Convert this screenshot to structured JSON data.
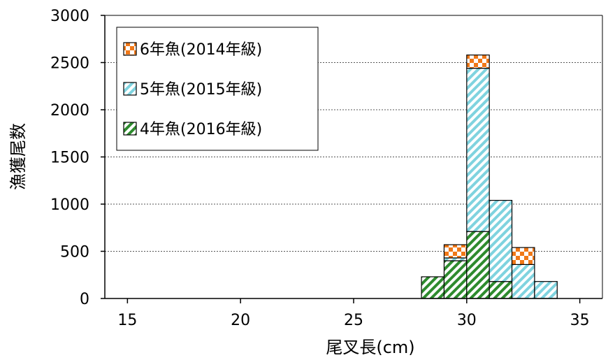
{
  "chart_data": {
    "type": "bar",
    "stacked": true,
    "xlabel": "尾叉長(cm)",
    "ylabel": "漁獲尾数",
    "xlim": [
      14,
      36
    ],
    "ylim": [
      0,
      3000
    ],
    "xticks": [
      "15",
      "20",
      "25",
      "30",
      "35"
    ],
    "xtick_values": [
      15,
      20,
      25,
      30,
      35
    ],
    "yticks": [
      "0",
      "500",
      "1000",
      "1500",
      "2000",
      "2500",
      "3000"
    ],
    "ytick_values": [
      0,
      500,
      1000,
      1500,
      2000,
      2500,
      3000
    ],
    "grid": "horizontal-dotted",
    "legend_position": "top-left",
    "bin_width": 1,
    "bins": [
      28,
      29,
      30,
      31,
      32,
      33
    ],
    "series": [
      {
        "name": "4年魚(2016年級)",
        "pattern": "diagonal-green",
        "color": "#2e8b2e",
        "values": [
          230,
          400,
          710,
          180,
          0,
          0
        ]
      },
      {
        "name": "5年魚(2015年級)",
        "pattern": "diagonal-cyan",
        "color": "#5bc8d8",
        "values": [
          0,
          30,
          1730,
          860,
          360,
          180
        ]
      },
      {
        "name": "6年魚(2014年級)",
        "pattern": "checker-orange",
        "color": "#f07818",
        "values": [
          0,
          140,
          140,
          0,
          180,
          0
        ]
      }
    ],
    "legend_order": [
      2,
      1,
      0
    ]
  }
}
